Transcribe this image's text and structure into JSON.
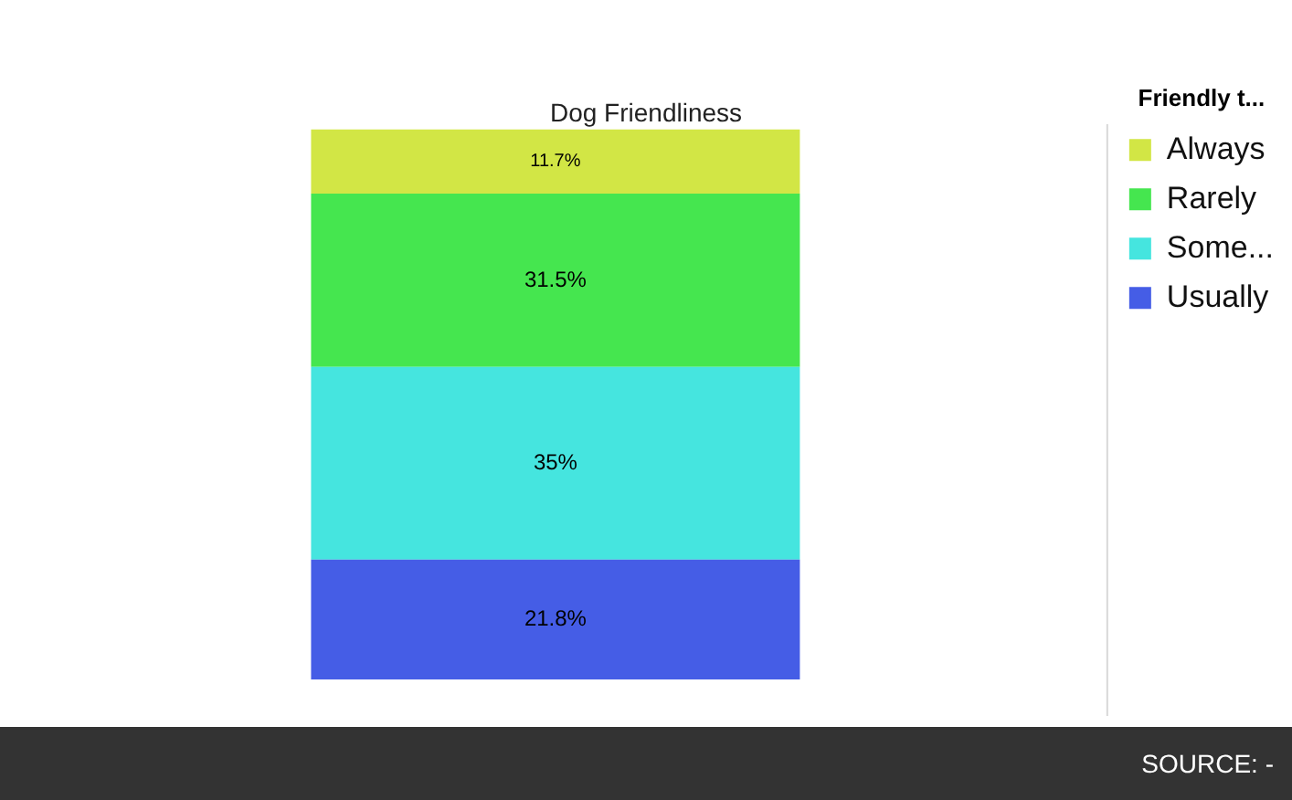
{
  "chart_data": {
    "type": "bar",
    "title": "Dog Friendliness",
    "legend_title": "Friendly t...",
    "categories": [
      null
    ],
    "stacked": true,
    "legend": "right",
    "tick_labels": false,
    "series": [
      {
        "name": "Usually",
        "color": "#455de6",
        "values": [
          21.8
        ],
        "value_labels": [
          "21.8%"
        ]
      },
      {
        "name": "Some...",
        "color": "#45e5df",
        "values": [
          35
        ],
        "value_labels": [
          "35%"
        ]
      },
      {
        "name": "Rarely",
        "color": "#45e64f",
        "values": [
          31.5
        ],
        "value_labels": [
          "31.5%"
        ]
      },
      {
        "name": "Always",
        "color": "#d2e645",
        "values": [
          11.7
        ],
        "value_labels": [
          "11.7%"
        ]
      }
    ],
    "annotations": [
      "SOURCE: -"
    ]
  }
}
